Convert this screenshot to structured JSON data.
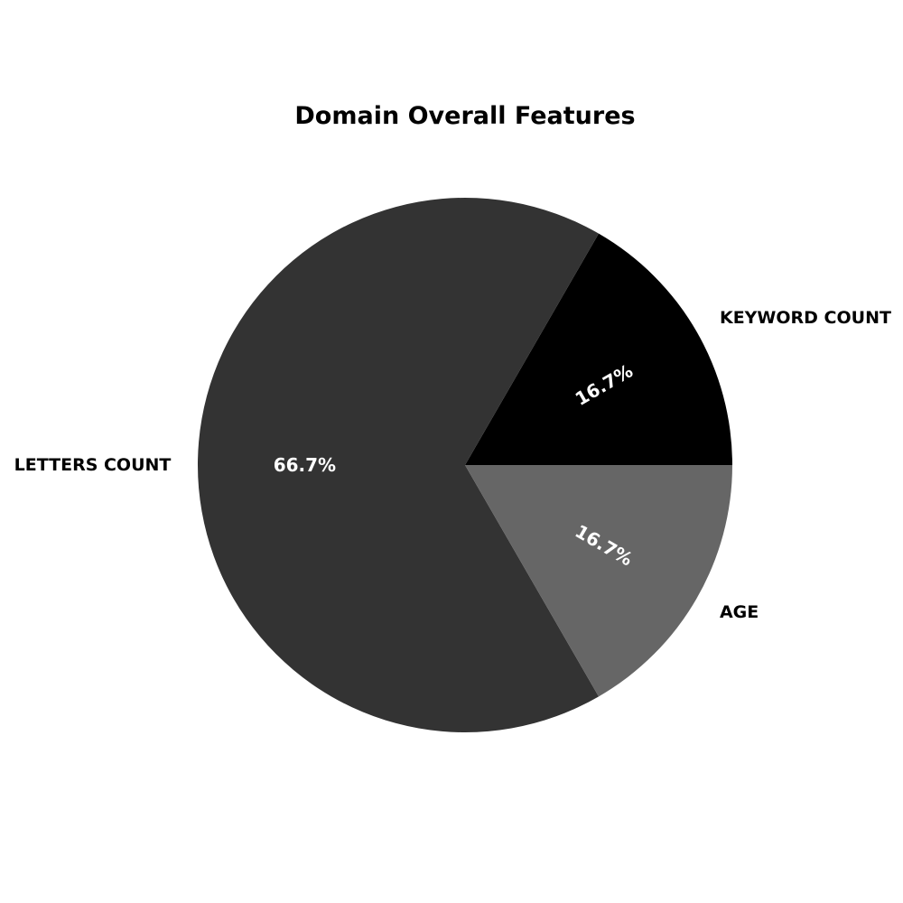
{
  "chart_data": {
    "type": "pie",
    "title": "Domain Overall Features",
    "slices": [
      {
        "label": "KEYWORD COUNT",
        "value": 1,
        "pct_label": "16.7%",
        "color": "#000000"
      },
      {
        "label": "LETTERS COUNT",
        "value": 4,
        "pct_label": "66.7%",
        "color": "#333333"
      },
      {
        "label": "AGE",
        "value": 1,
        "pct_label": "16.7%",
        "color": "#666666"
      }
    ],
    "start_angle_deg": 0,
    "direction": "counterclockwise",
    "label_color": "#000000",
    "pct_color": "#ffffff",
    "legend": "none"
  }
}
